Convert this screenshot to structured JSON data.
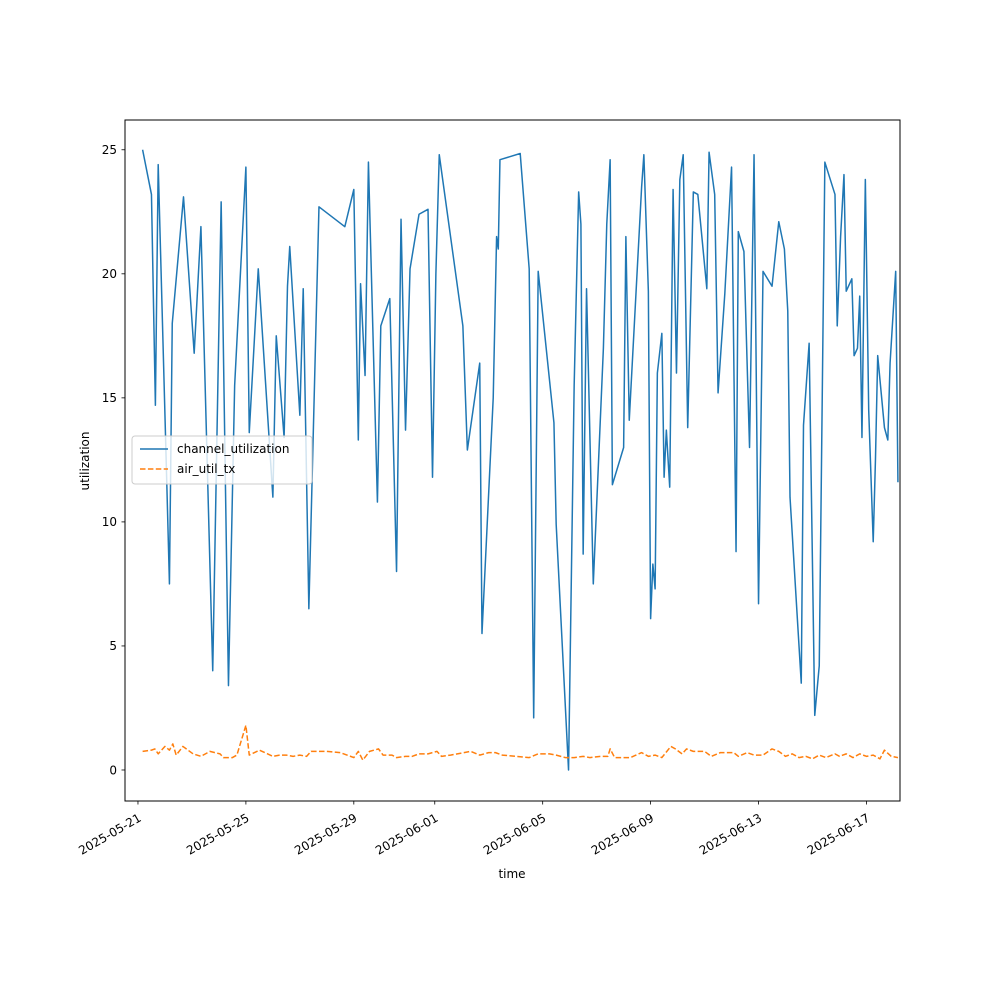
{
  "chart_data": {
    "type": "line",
    "xlabel": "time",
    "ylabel": "utilization",
    "x_tick_labels": [
      "2025-05-21",
      "2025-05-25",
      "2025-05-29",
      "2025-06-01",
      "2025-06-05",
      "2025-06-09",
      "2025-06-13",
      "2025-06-17"
    ],
    "x_tick_dates": [
      "2025-05-21",
      "2025-05-25",
      "2025-05-29",
      "2025-06-01",
      "2025-06-05",
      "2025-06-09",
      "2025-06-13",
      "2025-06-17"
    ],
    "y_tick_labels": [
      "0",
      "5",
      "10",
      "15",
      "20",
      "25"
    ],
    "y_tick_values": [
      0,
      5,
      10,
      15,
      20,
      25
    ],
    "xlim": [
      "2025-05-20T12:28",
      "2025-06-18T05:50"
    ],
    "ylim": [
      -1.25,
      26.2
    ],
    "grid": false,
    "legend_position": "center-left",
    "series": [
      {
        "name": "channel_utilization",
        "color": "#1f77b4",
        "style": "solid",
        "points": [
          [
            "2025-05-21T04:08",
            25.0
          ],
          [
            "2025-05-21T12:00",
            23.2
          ],
          [
            "2025-05-21T15:30",
            14.7
          ],
          [
            "2025-05-21T18:00",
            24.4
          ],
          [
            "2025-05-22T01:30",
            11.8
          ],
          [
            "2025-05-22T04:00",
            7.5
          ],
          [
            "2025-05-22T06:30",
            18.0
          ],
          [
            "2025-05-22T16:30",
            23.1
          ],
          [
            "2025-05-23T02:00",
            16.8
          ],
          [
            "2025-05-23T08:00",
            21.9
          ],
          [
            "2025-05-23T18:30",
            4.0
          ],
          [
            "2025-05-24T02:00",
            22.9
          ],
          [
            "2025-05-24T08:30",
            3.4
          ],
          [
            "2025-05-24T14:00",
            15.5
          ],
          [
            "2025-05-25T00:00",
            24.3
          ],
          [
            "2025-05-25T03:00",
            13.6
          ],
          [
            "2025-05-25T11:00",
            20.2
          ],
          [
            "2025-05-26T00:00",
            11.0
          ],
          [
            "2025-05-26T03:00",
            17.5
          ],
          [
            "2025-05-26T10:00",
            13.4
          ],
          [
            "2025-05-26T13:00",
            19.5
          ],
          [
            "2025-05-26T15:00",
            21.1
          ],
          [
            "2025-05-27T00:00",
            14.3
          ],
          [
            "2025-05-27T03:00",
            19.4
          ],
          [
            "2025-05-27T08:00",
            6.5
          ],
          [
            "2025-05-27T17:00",
            22.7
          ],
          [
            "2025-05-28T16:00",
            21.9
          ],
          [
            "2025-05-29T00:00",
            23.4
          ],
          [
            "2025-05-29T04:00",
            13.3
          ],
          [
            "2025-05-29T06:00",
            19.6
          ],
          [
            "2025-05-29T10:00",
            15.9
          ],
          [
            "2025-05-29T13:00",
            24.5
          ],
          [
            "2025-05-29T21:00",
            10.8
          ],
          [
            "2025-05-30T00:00",
            17.9
          ],
          [
            "2025-05-30T08:00",
            19.0
          ],
          [
            "2025-05-30T14:00",
            8.0
          ],
          [
            "2025-05-30T18:00",
            22.2
          ],
          [
            "2025-05-30T22:00",
            13.7
          ],
          [
            "2025-05-31T02:00",
            20.2
          ],
          [
            "2025-05-31T10:00",
            22.4
          ],
          [
            "2025-05-31T18:00",
            22.6
          ],
          [
            "2025-05-31T22:00",
            11.8
          ],
          [
            "2025-06-01T01:00",
            20.0
          ],
          [
            "2025-06-01T04:00",
            24.8
          ],
          [
            "2025-06-02T01:00",
            17.9
          ],
          [
            "2025-06-02T05:00",
            12.9
          ],
          [
            "2025-06-02T16:00",
            16.4
          ],
          [
            "2025-06-02T18:00",
            5.5
          ],
          [
            "2025-06-03T04:00",
            15.0
          ],
          [
            "2025-06-03T07:00",
            21.5
          ],
          [
            "2025-06-03T08:30",
            21.0
          ],
          [
            "2025-06-03T10:00",
            24.6
          ],
          [
            "2025-06-04T04:00",
            24.85
          ],
          [
            "2025-06-04T12:00",
            20.2
          ],
          [
            "2025-06-04T16:00",
            2.1
          ],
          [
            "2025-06-04T20:00",
            20.1
          ],
          [
            "2025-06-05T10:00",
            14.0
          ],
          [
            "2025-06-05T12:00",
            9.9
          ],
          [
            "2025-06-05T23:00",
            0.0
          ],
          [
            "2025-06-06T04:00",
            15.5
          ],
          [
            "2025-06-06T08:00",
            23.3
          ],
          [
            "2025-06-06T10:00",
            22.0
          ],
          [
            "2025-06-06T12:00",
            8.7
          ],
          [
            "2025-06-06T15:00",
            19.4
          ],
          [
            "2025-06-06T21:00",
            7.5
          ],
          [
            "2025-06-07T06:00",
            17.0
          ],
          [
            "2025-06-07T09:00",
            22.0
          ],
          [
            "2025-06-07T12:00",
            24.6
          ],
          [
            "2025-06-07T14:00",
            11.5
          ],
          [
            "2025-06-08T00:00",
            13.0
          ],
          [
            "2025-06-08T02:00",
            21.5
          ],
          [
            "2025-06-08T05:00",
            14.1
          ],
          [
            "2025-06-08T16:00",
            23.5
          ],
          [
            "2025-06-08T18:00",
            24.8
          ],
          [
            "2025-06-08T22:00",
            19.3
          ],
          [
            "2025-06-09T00:00",
            6.1
          ],
          [
            "2025-06-09T02:00",
            8.3
          ],
          [
            "2025-06-09T04:00",
            7.3
          ],
          [
            "2025-06-09T06:00",
            16.0
          ],
          [
            "2025-06-09T10:00",
            17.6
          ],
          [
            "2025-06-09T12:00",
            11.8
          ],
          [
            "2025-06-09T14:00",
            13.7
          ],
          [
            "2025-06-09T17:00",
            11.4
          ],
          [
            "2025-06-09T20:00",
            23.4
          ],
          [
            "2025-06-09T23:00",
            16.0
          ],
          [
            "2025-06-10T02:00",
            23.8
          ],
          [
            "2025-06-10T05:00",
            24.8
          ],
          [
            "2025-06-10T09:00",
            13.8
          ],
          [
            "2025-06-10T14:00",
            23.3
          ],
          [
            "2025-06-10T18:00",
            23.2
          ],
          [
            "2025-06-11T02:00",
            19.4
          ],
          [
            "2025-06-11T04:00",
            24.9
          ],
          [
            "2025-06-11T09:00",
            23.2
          ],
          [
            "2025-06-11T12:00",
            15.2
          ],
          [
            "2025-06-11T18:00",
            19.2
          ],
          [
            "2025-06-12T00:00",
            24.3
          ],
          [
            "2025-06-12T04:00",
            8.8
          ],
          [
            "2025-06-12T06:00",
            21.7
          ],
          [
            "2025-06-12T11:00",
            20.9
          ],
          [
            "2025-06-12T16:00",
            13.0
          ],
          [
            "2025-06-12T20:00",
            24.8
          ],
          [
            "2025-06-13T00:00",
            6.7
          ],
          [
            "2025-06-13T04:00",
            20.1
          ],
          [
            "2025-06-13T12:00",
            19.5
          ],
          [
            "2025-06-13T18:00",
            22.1
          ],
          [
            "2025-06-13T23:00",
            21.0
          ],
          [
            "2025-06-14T02:00",
            18.5
          ],
          [
            "2025-06-14T04:00",
            11.0
          ],
          [
            "2025-06-14T14:00",
            3.5
          ],
          [
            "2025-06-14T16:00",
            13.9
          ],
          [
            "2025-06-14T21:00",
            17.2
          ],
          [
            "2025-06-15T02:00",
            2.2
          ],
          [
            "2025-06-15T06:00",
            4.2
          ],
          [
            "2025-06-15T11:00",
            24.5
          ],
          [
            "2025-06-15T20:00",
            23.2
          ],
          [
            "2025-06-15T22:00",
            17.9
          ],
          [
            "2025-06-16T01:00",
            21.5
          ],
          [
            "2025-06-16T04:00",
            24.0
          ],
          [
            "2025-06-16T06:00",
            19.3
          ],
          [
            "2025-06-16T11:00",
            19.8
          ],
          [
            "2025-06-16T13:00",
            16.7
          ],
          [
            "2025-06-16T16:00",
            17.0
          ],
          [
            "2025-06-16T18:00",
            19.1
          ],
          [
            "2025-06-16T20:00",
            13.4
          ],
          [
            "2025-06-16T23:00",
            23.8
          ],
          [
            "2025-06-17T02:00",
            14.5
          ],
          [
            "2025-06-17T06:00",
            9.2
          ],
          [
            "2025-06-17T08:00",
            12.5
          ],
          [
            "2025-06-17T10:00",
            16.7
          ],
          [
            "2025-06-17T16:00",
            13.8
          ],
          [
            "2025-06-17T19:00",
            13.3
          ],
          [
            "2025-06-17T21:00",
            16.4
          ],
          [
            "2025-06-18T02:00",
            20.1
          ],
          [
            "2025-06-18T04:00",
            11.6
          ]
        ]
      },
      {
        "name": "air_util_tx",
        "color": "#ff7f0e",
        "style": "dashed",
        "points": [
          [
            "2025-05-21T04:08",
            0.75
          ],
          [
            "2025-05-21T12:00",
            0.8
          ],
          [
            "2025-05-21T15:00",
            0.85
          ],
          [
            "2025-05-21T18:00",
            0.65
          ],
          [
            "2025-05-22T00:00",
            0.95
          ],
          [
            "2025-05-22T04:00",
            0.8
          ],
          [
            "2025-05-22T07:00",
            1.05
          ],
          [
            "2025-05-22T10:00",
            0.6
          ],
          [
            "2025-05-22T16:00",
            0.95
          ],
          [
            "2025-05-23T01:00",
            0.65
          ],
          [
            "2025-05-23T08:00",
            0.55
          ],
          [
            "2025-05-23T16:00",
            0.75
          ],
          [
            "2025-05-24T01:00",
            0.65
          ],
          [
            "2025-05-24T04:00",
            0.5
          ],
          [
            "2025-05-24T12:00",
            0.5
          ],
          [
            "2025-05-24T16:00",
            0.6
          ],
          [
            "2025-05-25T00:00",
            1.8
          ],
          [
            "2025-05-25T03:00",
            0.6
          ],
          [
            "2025-05-25T12:00",
            0.8
          ],
          [
            "2025-05-26T00:00",
            0.55
          ],
          [
            "2025-05-26T06:00",
            0.6
          ],
          [
            "2025-05-26T12:00",
            0.6
          ],
          [
            "2025-05-26T18:00",
            0.55
          ],
          [
            "2025-05-27T00:00",
            0.6
          ],
          [
            "2025-05-27T06:00",
            0.55
          ],
          [
            "2025-05-27T10:00",
            0.75
          ],
          [
            "2025-05-28T00:00",
            0.75
          ],
          [
            "2025-05-28T12:00",
            0.7
          ],
          [
            "2025-05-29T00:00",
            0.5
          ],
          [
            "2025-05-29T04:00",
            0.75
          ],
          [
            "2025-05-29T08:00",
            0.4
          ],
          [
            "2025-05-29T14:00",
            0.75
          ],
          [
            "2025-05-29T22:00",
            0.85
          ],
          [
            "2025-05-30T02:00",
            0.6
          ],
          [
            "2025-05-30T10:00",
            0.6
          ],
          [
            "2025-05-30T14:00",
            0.5
          ],
          [
            "2025-05-30T22:00",
            0.55
          ],
          [
            "2025-05-31T04:00",
            0.55
          ],
          [
            "2025-05-31T10:00",
            0.65
          ],
          [
            "2025-05-31T18:00",
            0.65
          ],
          [
            "2025-06-01T02:00",
            0.75
          ],
          [
            "2025-06-01T06:00",
            0.55
          ],
          [
            "2025-06-01T14:00",
            0.6
          ],
          [
            "2025-06-02T02:00",
            0.7
          ],
          [
            "2025-06-02T08:00",
            0.75
          ],
          [
            "2025-06-02T16:00",
            0.6
          ],
          [
            "2025-06-03T00:00",
            0.7
          ],
          [
            "2025-06-03T06:00",
            0.7
          ],
          [
            "2025-06-03T12:00",
            0.6
          ],
          [
            "2025-06-04T00:00",
            0.55
          ],
          [
            "2025-06-04T12:00",
            0.5
          ],
          [
            "2025-06-04T20:00",
            0.65
          ],
          [
            "2025-06-05T06:00",
            0.65
          ],
          [
            "2025-06-05T12:00",
            0.6
          ],
          [
            "2025-06-05T20:00",
            0.5
          ],
          [
            "2025-06-06T04:00",
            0.5
          ],
          [
            "2025-06-06T12:00",
            0.55
          ],
          [
            "2025-06-06T18:00",
            0.5
          ],
          [
            "2025-06-07T04:00",
            0.55
          ],
          [
            "2025-06-07T10:00",
            0.55
          ],
          [
            "2025-06-07T12:00",
            0.85
          ],
          [
            "2025-06-07T16:00",
            0.5
          ],
          [
            "2025-06-08T06:00",
            0.5
          ],
          [
            "2025-06-08T16:00",
            0.7
          ],
          [
            "2025-06-08T22:00",
            0.55
          ],
          [
            "2025-06-09T04:00",
            0.6
          ],
          [
            "2025-06-09T10:00",
            0.5
          ],
          [
            "2025-06-09T18:00",
            0.95
          ],
          [
            "2025-06-09T22:00",
            0.85
          ],
          [
            "2025-06-10T04:00",
            0.65
          ],
          [
            "2025-06-10T08:00",
            0.85
          ],
          [
            "2025-06-10T14:00",
            0.75
          ],
          [
            "2025-06-11T00:00",
            0.75
          ],
          [
            "2025-06-11T06:00",
            0.55
          ],
          [
            "2025-06-11T14:00",
            0.7
          ],
          [
            "2025-06-12T02:00",
            0.7
          ],
          [
            "2025-06-12T06:00",
            0.55
          ],
          [
            "2025-06-12T14:00",
            0.7
          ],
          [
            "2025-06-12T20:00",
            0.6
          ],
          [
            "2025-06-13T04:00",
            0.6
          ],
          [
            "2025-06-13T12:00",
            0.85
          ],
          [
            "2025-06-13T18:00",
            0.75
          ],
          [
            "2025-06-14T00:00",
            0.55
          ],
          [
            "2025-06-14T06:00",
            0.65
          ],
          [
            "2025-06-14T12:00",
            0.5
          ],
          [
            "2025-06-14T18:00",
            0.55
          ],
          [
            "2025-06-15T00:00",
            0.45
          ],
          [
            "2025-06-15T06:00",
            0.6
          ],
          [
            "2025-06-15T12:00",
            0.5
          ],
          [
            "2025-06-15T20:00",
            0.65
          ],
          [
            "2025-06-16T00:00",
            0.55
          ],
          [
            "2025-06-16T06:00",
            0.65
          ],
          [
            "2025-06-16T12:00",
            0.5
          ],
          [
            "2025-06-16T18:00",
            0.65
          ],
          [
            "2025-06-17T00:00",
            0.55
          ],
          [
            "2025-06-17T06:00",
            0.6
          ],
          [
            "2025-06-17T12:00",
            0.45
          ],
          [
            "2025-06-17T16:00",
            0.8
          ],
          [
            "2025-06-17T22:00",
            0.55
          ],
          [
            "2025-06-18T04:00",
            0.5
          ]
        ]
      }
    ]
  }
}
